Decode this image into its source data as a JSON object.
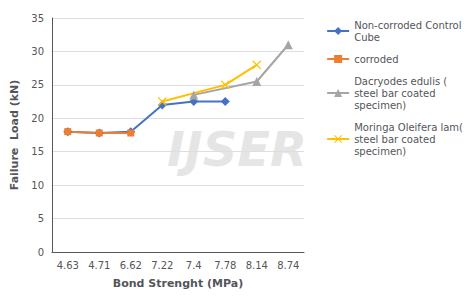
{
  "chart_data": {
    "type": "line",
    "x_label": "Bond Strenght (MPa)",
    "y_label": "Failure  Load (kN)",
    "categories": [
      "4.63",
      "4.71",
      "6.62",
      "7.22",
      "7.4",
      "7.78",
      "8.14",
      "8.74"
    ],
    "series": [
      {
        "name": "Non-corroded Control\nCube",
        "color": "#4472C4",
        "marker": "diamond",
        "values": [
          18.0,
          17.8,
          18.0,
          22.0,
          22.5,
          22.5,
          null,
          null
        ]
      },
      {
        "name": "corroded",
        "color": "#ED7D31",
        "marker": "square",
        "values": [
          18.0,
          17.8,
          17.8,
          null,
          null,
          null,
          null,
          null
        ]
      },
      {
        "name": "Dacryodes edulis (\nsteel bar coated\nspecimen)",
        "color": "#A5A5A5",
        "marker": "triangle",
        "values": [
          null,
          null,
          null,
          null,
          23.5,
          null,
          25.5,
          31.0
        ]
      },
      {
        "name": "Moringa Oleifera lam(\nsteel bar coated\nspecimen)",
        "color": "#FFC000",
        "marker": "x",
        "values": [
          null,
          null,
          null,
          22.5,
          null,
          25.0,
          28.0,
          null
        ]
      }
    ],
    "ylim": [
      0,
      35
    ],
    "yticks": [
      0,
      5,
      10,
      15,
      20,
      25,
      30,
      35
    ],
    "grid": true,
    "legend": "right",
    "annotations": [
      {
        "text": "IJSER",
        "color": "#cccccc"
      }
    ]
  }
}
